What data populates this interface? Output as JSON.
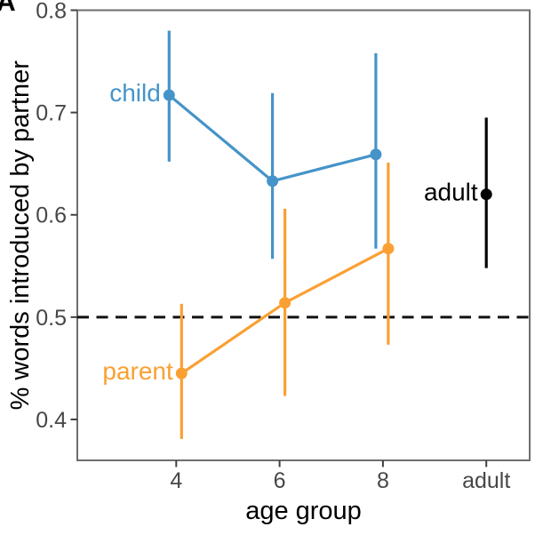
{
  "figure": {
    "panel_label": "A",
    "background_color": "#ffffff"
  },
  "chart_data": {
    "type": "line",
    "title": "",
    "xlabel": "age group",
    "ylabel": "% words introduced by partner",
    "x_categories": [
      "4",
      "6",
      "8",
      "adult"
    ],
    "y_ticks": [
      {
        "value": 0.4,
        "label": "0.4"
      },
      {
        "value": 0.5,
        "label": "0.5"
      },
      {
        "value": 0.6,
        "label": "0.6"
      },
      {
        "value": 0.7,
        "label": "0.7"
      },
      {
        "value": 0.8,
        "label": "0.8"
      }
    ],
    "ylim": [
      0.36,
      0.8
    ],
    "grid": false,
    "legend": "direct series labels inside panel",
    "reference_line": {
      "y": 0.5,
      "style": "dashed",
      "color": "#111111"
    },
    "series": [
      {
        "name": "child",
        "label": "child",
        "color": "#4594C9",
        "categories": [
          "4",
          "6",
          "8"
        ],
        "values": [
          0.717,
          0.633,
          0.659
        ],
        "ci_low": [
          0.652,
          0.557,
          0.567
        ],
        "ci_high": [
          0.78,
          0.719,
          0.758
        ],
        "connected": true
      },
      {
        "name": "parent",
        "label": "parent",
        "color": "#FAA033",
        "categories": [
          "4",
          "6",
          "8"
        ],
        "values": [
          0.445,
          0.514,
          0.567
        ],
        "ci_low": [
          0.381,
          0.423,
          0.473
        ],
        "ci_high": [
          0.513,
          0.606,
          0.651
        ],
        "connected": true
      },
      {
        "name": "adult",
        "label": "adult",
        "color": "#000000",
        "categories": [
          "adult"
        ],
        "values": [
          0.62
        ],
        "ci_low": [
          0.548
        ],
        "ci_high": [
          0.695
        ],
        "connected": false
      }
    ]
  },
  "style_colors": {
    "panel_border": "#6E6E6E",
    "tick_mark": "#404040",
    "tick_label": "#474747",
    "axis_title": "#000000"
  }
}
